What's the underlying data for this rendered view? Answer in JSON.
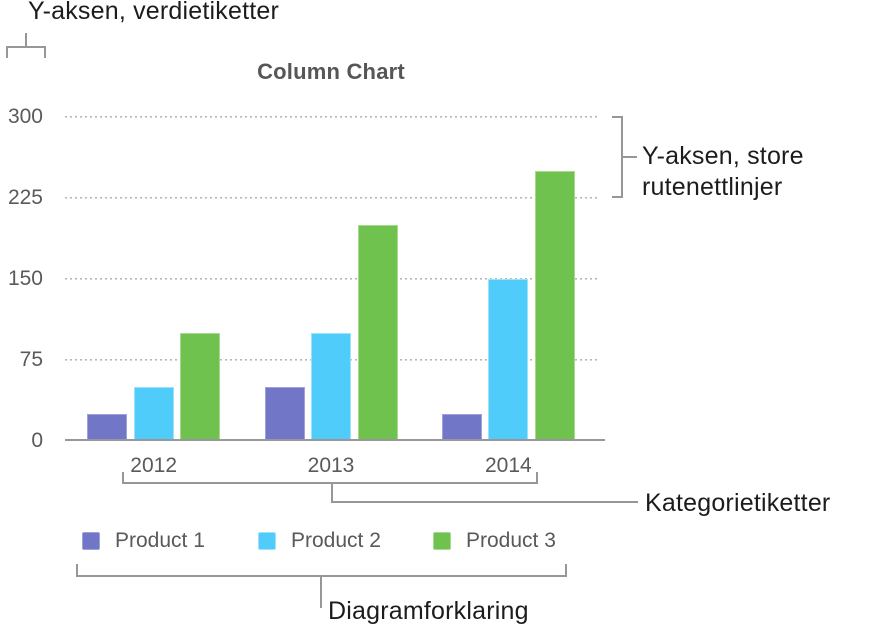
{
  "annotations": {
    "y_axis_value_labels": "Y-aksen, verdietiketter",
    "y_axis_gridlines": "Y-aksen, store rutenettlinjer",
    "category_labels": "Kategorietiketter",
    "legend": "Diagramforklaring"
  },
  "chart_data": {
    "type": "bar",
    "title": "Column Chart",
    "categories": [
      "2012",
      "2013",
      "2014"
    ],
    "series": [
      {
        "name": "Product 1",
        "color": "#7177c6",
        "border_color": "#9da2da",
        "values": [
          25,
          50,
          25
        ]
      },
      {
        "name": "Product 2",
        "color": "#4fccf9",
        "border_color": "#9be2fb",
        "values": [
          50,
          100,
          150
        ]
      },
      {
        "name": "Product 3",
        "color": "#6fc24d",
        "border_color": "#a8d98c",
        "values": [
          100,
          200,
          250
        ]
      }
    ],
    "yticks": [
      0,
      75,
      150,
      225,
      300
    ],
    "ylim": [
      0,
      300
    ],
    "xlabel": "",
    "ylabel": "",
    "grid": "horizontal dotted gridlines at 75, 150, 225, 300",
    "legend_position": "bottom"
  },
  "colors": {
    "annotation_text": "#1c1c1e",
    "chart_text": "#5a5a5d",
    "bracket": "#97979a",
    "gridline": "#b6b6b6",
    "axis_line": "#98989b",
    "title_text": "#565658"
  }
}
